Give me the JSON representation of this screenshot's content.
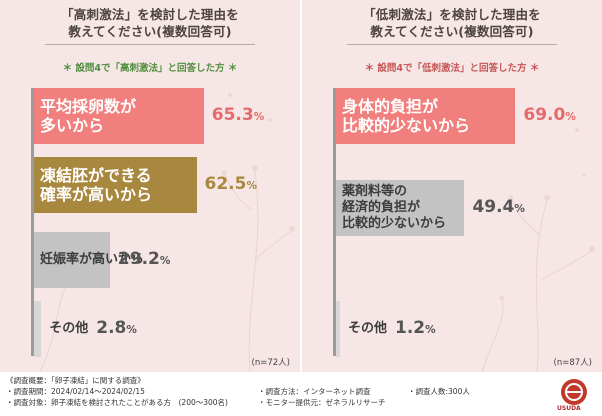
{
  "left": {
    "title_line1": "「高刺激法」を検討した理由を",
    "title_line2": "教えてください(複数回答可)",
    "subtitle": "＊ 設問4で「高刺激法」と回答した方 ＊",
    "n": "(n=72人)"
  },
  "right": {
    "title_line1": "「低刺激法」を検討した理由を",
    "title_line2": "教えてください(複数回答可)",
    "subtitle": "＊ 設問4で「低刺激法」と回答した方 ＊",
    "n": "(n=87人)"
  },
  "footer": {
    "overview": "《調査概要：「卵子凍結」に関する調査》",
    "period": "・調査期間：2024/02/14〜2024/02/15",
    "target": "・調査対象：卵子凍結を検討されたことがある方　(200〜300名)",
    "method": "・調査方法：インターネット調査",
    "provider": "・モニター提供元：ゼネラルリサーチ",
    "count": "・調査人数:300人",
    "logo_text": "USUDA"
  },
  "colors": {
    "background": "#f7e6e6",
    "bar_pink": "#f07f7d",
    "bar_gold": "#a8883f",
    "bar_gray": "#c3c3c3",
    "bar_light_gray": "#d7d7d7",
    "subtitle_green": "#4f8f3e",
    "subtitle_red": "#c55656"
  },
  "chart_data": [
    {
      "type": "bar",
      "orientation": "horizontal",
      "categories": [
        "平均採卵数が多いから",
        "凍結胚ができる確率が高いから",
        "妊娠率が高いから",
        "その他"
      ],
      "values": [
        65.3,
        62.5,
        29.2,
        2.8
      ],
      "unit": "%",
      "xlim": [
        0,
        100
      ],
      "bar_colors": [
        "#f07f7d",
        "#a8883f",
        "#c3c3c3",
        "#d7d7d7"
      ],
      "label_lines": [
        [
          "平均採卵数が",
          "多いから"
        ],
        [
          "凍結胚ができる",
          "確率が高いから"
        ],
        [
          "妊娠率が高いから"
        ],
        [
          "その他"
        ]
      ],
      "value_labels": [
        {
          "num": "65.3",
          "unit": "%"
        },
        {
          "num": "62.5",
          "unit": "%"
        },
        {
          "num": "29.2",
          "unit": "%"
        },
        {
          "num": "2.8",
          "unit": "%"
        }
      ]
    },
    {
      "type": "bar",
      "orientation": "horizontal",
      "categories": [
        "身体的負担が比較的少ないから",
        "薬剤料等の経済的負担が比較的少ないから",
        "その他"
      ],
      "values": [
        69.0,
        49.4,
        1.2
      ],
      "unit": "%",
      "xlim": [
        0,
        100
      ],
      "bar_colors": [
        "#f07f7d",
        "#c3c3c3",
        "#d7d7d7"
      ],
      "label_lines": [
        [
          "身体的負担が",
          "比較的少ないから"
        ],
        [
          "薬剤料等の",
          "経済的負担が",
          "比較的少ないから"
        ],
        [
          "その他"
        ]
      ],
      "value_labels": [
        {
          "num": "69.0",
          "unit": "%"
        },
        {
          "num": "49.4",
          "unit": "%"
        },
        {
          "num": "1.2",
          "unit": "%"
        }
      ]
    }
  ]
}
